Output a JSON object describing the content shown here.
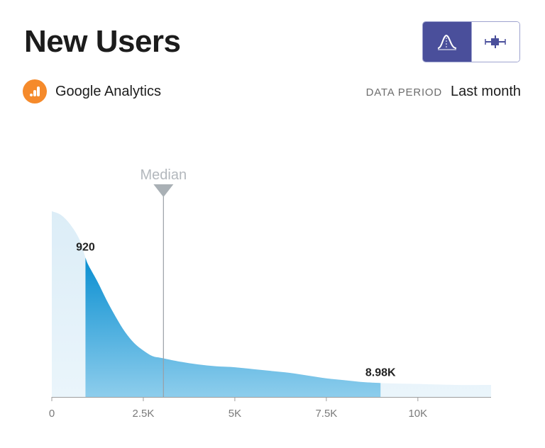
{
  "header": {
    "title": "New Users",
    "view_toggle": [
      {
        "icon": "distribution-curve-icon",
        "active": true
      },
      {
        "icon": "box-plot-icon",
        "active": false
      }
    ]
  },
  "source": {
    "icon": "google-analytics-icon",
    "label": "Google Analytics",
    "icon_color": "#f58a2b"
  },
  "period": {
    "label": "DATA PERIOD",
    "value": "Last month"
  },
  "colors": {
    "accent": "#4a4f9b",
    "area_light": "#dcedf7",
    "area_dark_top": "#0a8fd1",
    "area_dark_bottom": "#8dcdec",
    "median_line": "#9aa0a6"
  },
  "chart_data": {
    "type": "area",
    "x": [
      0,
      250,
      500,
      750,
      920,
      1000,
      1250,
      1500,
      1750,
      2000,
      2250,
      2500,
      2750,
      3000,
      3500,
      4000,
      4500,
      5000,
      5500,
      6000,
      6500,
      7000,
      7500,
      8000,
      8500,
      8980,
      9500,
      10000,
      11000,
      12000
    ],
    "y": [
      100,
      98,
      93,
      85,
      75,
      71,
      62,
      52,
      43,
      35,
      29,
      25,
      22,
      21,
      19,
      17.5,
      16.5,
      16,
      15,
      14,
      13,
      11.5,
      10,
      9,
      8,
      7.5,
      7.2,
      7,
      6.5,
      6.5
    ],
    "highlight_range": [
      920,
      8980
    ],
    "range_labels": [
      "920",
      "8.98K"
    ],
    "median": {
      "value": 3050,
      "label": "Median"
    },
    "xlim": [
      0,
      12000
    ],
    "x_ticks": [
      0,
      2500,
      5000,
      7500,
      10000
    ],
    "x_tick_labels": [
      "0",
      "2.5K",
      "5K",
      "7.5K",
      "10K"
    ],
    "grid": false,
    "legend": "none"
  }
}
